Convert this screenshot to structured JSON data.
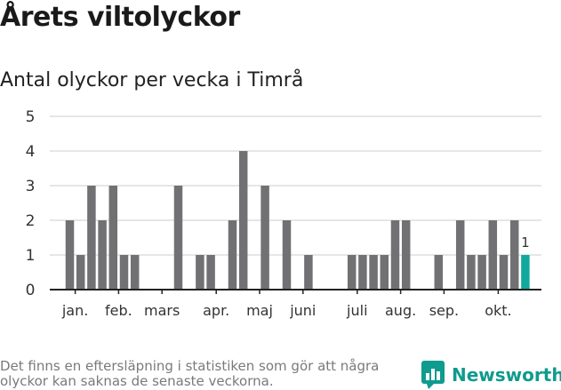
{
  "title": "Årets viltolyckor",
  "subtitle": "Antal olyckor per vecka i Timrå",
  "footnote": "Det finns en eftersläpning i statistiken som gör att några olyckor kan saknas de senaste veckorna.",
  "brand": {
    "name": "Newsworthy",
    "icon": "bar-chart-speech-bubble-icon",
    "color": "#0f9b8e"
  },
  "colors": {
    "bar": "#717073",
    "highlight": "#13a89e",
    "grid": "#dddddd"
  },
  "chart_data": {
    "type": "bar",
    "title": "Antal olyckor per vecka i Timrå",
    "xlabel": "",
    "ylabel": "",
    "ylim": [
      0,
      5
    ],
    "yticks": [
      0,
      1,
      2,
      3,
      4,
      5
    ],
    "weeks": [
      1,
      2,
      3,
      4,
      5,
      6,
      7,
      8,
      9,
      10,
      11,
      12,
      13,
      14,
      15,
      16,
      17,
      18,
      19,
      20,
      21,
      22,
      23,
      24,
      25,
      26,
      27,
      28,
      29,
      30,
      31,
      32,
      33,
      34,
      35,
      36,
      37,
      38,
      39,
      40,
      41,
      42,
      43
    ],
    "values": [
      2,
      1,
      3,
      2,
      3,
      1,
      1,
      0,
      0,
      0,
      3,
      0,
      1,
      1,
      0,
      2,
      4,
      0,
      3,
      0,
      2,
      0,
      1,
      0,
      0,
      0,
      1,
      1,
      1,
      1,
      2,
      2,
      0,
      0,
      1,
      0,
      2,
      1,
      1,
      2,
      1,
      2,
      1
    ],
    "month_labels": [
      {
        "label": "jan.",
        "week": 1.5
      },
      {
        "label": "feb.",
        "week": 5.5
      },
      {
        "label": "mars",
        "week": 9.5
      },
      {
        "label": "apr.",
        "week": 14.5
      },
      {
        "label": "maj",
        "week": 18.5
      },
      {
        "label": "juni",
        "week": 22.5
      },
      {
        "label": "juli",
        "week": 27.5
      },
      {
        "label": "aug.",
        "week": 31.5
      },
      {
        "label": "sep.",
        "week": 35.5
      },
      {
        "label": "okt.",
        "week": 40.5
      }
    ],
    "highlight": {
      "week": 43,
      "value": 1,
      "label": "1"
    }
  }
}
